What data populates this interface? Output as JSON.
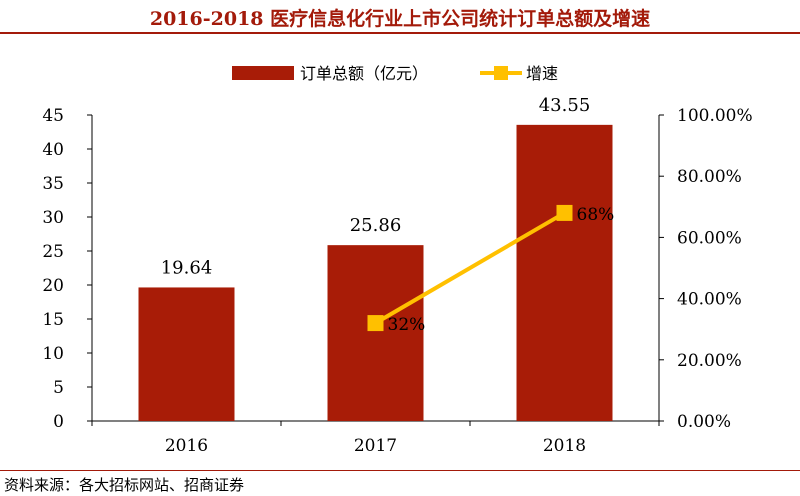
{
  "title": "2016-2018 医疗信息化行业上市公司统计订单总额及增速",
  "source": "资料来源：各大招标网站、招商证券",
  "colors": {
    "bar": "#a81c07",
    "line": "#ffc000",
    "title": "#a31a0a"
  },
  "chart_data": {
    "type": "bar",
    "categories": [
      "2016",
      "2017",
      "2018"
    ],
    "series": [
      {
        "name": "订单总额（亿元）",
        "type": "bar",
        "axis": "left",
        "values": [
          19.64,
          25.86,
          43.55
        ],
        "labels": [
          "19.64",
          "25.86",
          "43.55"
        ]
      },
      {
        "name": "增速",
        "type": "line",
        "axis": "right",
        "values": [
          null,
          0.32,
          0.68
        ],
        "labels": [
          "",
          "32%",
          "68%"
        ]
      }
    ],
    "ylim_left": [
      0,
      45
    ],
    "yticks_left": [
      "0",
      "5",
      "10",
      "15",
      "20",
      "25",
      "30",
      "35",
      "40",
      "45"
    ],
    "ylim_right": [
      0,
      1
    ],
    "yticks_right": [
      "0.00%",
      "20.00%",
      "40.00%",
      "60.00%",
      "80.00%",
      "100.00%"
    ],
    "grid": false,
    "legend": "top"
  }
}
